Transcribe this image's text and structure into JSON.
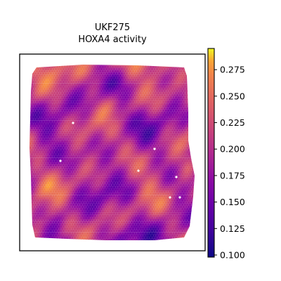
{
  "chart_data": {
    "type": "heatmap",
    "title": "UKF275",
    "subtitle": "HOXA4 activity",
    "colormap": "plasma",
    "colorbar": {
      "vmin": 0.098,
      "vmax": 0.295,
      "ticks": [
        0.1,
        0.125,
        0.15,
        0.175,
        0.2,
        0.225,
        0.25,
        0.275
      ],
      "tick_labels": [
        "0.100",
        "0.125",
        "0.150",
        "0.175",
        "0.200",
        "0.225",
        "0.250",
        "0.275"
      ]
    },
    "x_axis": "hidden",
    "y_axis": "hidden",
    "grid": false,
    "value_range_shown": [
      0.1,
      0.29
    ],
    "colors": {
      "frame": "#000000",
      "background": "#ffffff",
      "gap_spots": "#ffffff"
    }
  }
}
